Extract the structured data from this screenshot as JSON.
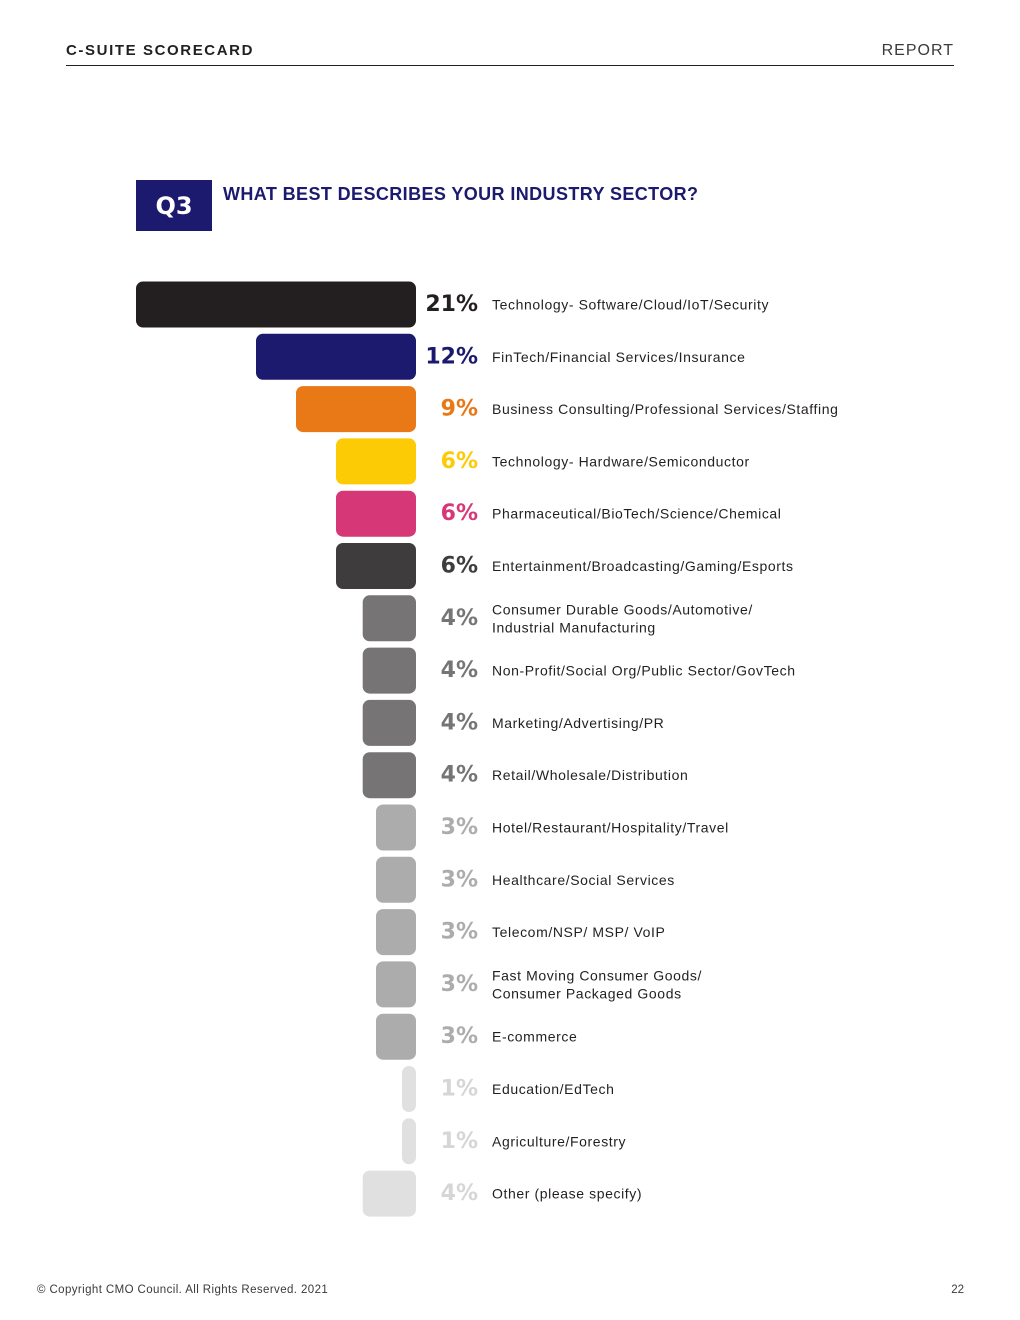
{
  "header": {
    "title": "C-SUITE SCORECARD",
    "section": "REPORT"
  },
  "question": {
    "number": "Q3",
    "text": "WHAT BEST DESCRIBES YOUR INDUSTRY SECTOR?"
  },
  "chart_data": {
    "type": "bar",
    "orientation": "horizontal",
    "title": "WHAT BEST DESCRIBES YOUR INDUSTRY SECTOR?",
    "unit": "%",
    "max_value": 21,
    "bars": [
      {
        "category": "Technology- Software/Cloud/IoT/Security",
        "value": 21,
        "label": "21%",
        "color": "#231f20"
      },
      {
        "category": "FinTech/Financial Services/Insurance",
        "value": 12,
        "label": "12%",
        "color": "#1b1a6e"
      },
      {
        "category": "Business Consulting/Professional Services/Staffing",
        "value": 9,
        "label": "9%",
        "color": "#e97817"
      },
      {
        "category": "Technology- Hardware/Semiconductor",
        "value": 6,
        "label": "6%",
        "color": "#fccb05"
      },
      {
        "category": "Pharmaceutical/BioTech/Science/Chemical",
        "value": 6,
        "label": "6%",
        "color": "#d63777"
      },
      {
        "category": "Entertainment/Broadcasting/Gaming/Esports",
        "value": 6,
        "label": "6%",
        "color": "#3f3c3d"
      },
      {
        "category": "Consumer Durable Goods/Automotive/ Industrial Manufacturing",
        "lines": [
          "Consumer Durable Goods/Automotive/",
          "Industrial Manufacturing"
        ],
        "value": 4,
        "label": "4%",
        "color": "#767474"
      },
      {
        "category": "Non-Profit/Social Org/Public Sector/GovTech",
        "value": 4,
        "label": "4%",
        "color": "#767474"
      },
      {
        "category": "Marketing/Advertising/PR",
        "value": 4,
        "label": "4%",
        "color": "#767474"
      },
      {
        "category": "Retail/Wholesale/Distribution",
        "value": 4,
        "label": "4%",
        "color": "#767474"
      },
      {
        "category": "Hotel/Restaurant/Hospitality/Travel",
        "value": 3,
        "label": "3%",
        "color": "#adacac"
      },
      {
        "category": "Healthcare/Social Services",
        "value": 3,
        "label": "3%",
        "color": "#adacac"
      },
      {
        "category": "Telecom/NSP/ MSP/ VoIP",
        "value": 3,
        "label": "3%",
        "color": "#adacac"
      },
      {
        "category": "Fast Moving Consumer Goods/ Consumer Packaged Goods",
        "lines": [
          "Fast Moving Consumer Goods/",
          "Consumer Packaged Goods"
        ],
        "value": 3,
        "label": "3%",
        "color": "#adacac"
      },
      {
        "category": "E-commerce",
        "value": 3,
        "label": "3%",
        "color": "#adacac"
      },
      {
        "category": "Education/EdTech",
        "value": 1,
        "label": "1%",
        "color": "#e0e0e0"
      },
      {
        "category": "Agriculture/Forestry",
        "value": 1,
        "label": "1%",
        "color": "#e0e0e0"
      },
      {
        "category": "Other (please specify)",
        "value": 4,
        "label": "4%",
        "color": "#e0e0e0"
      }
    ]
  },
  "footer": {
    "copyright": "© Copyright CMO Council. All Rights Reserved. 2021",
    "page": "22"
  }
}
